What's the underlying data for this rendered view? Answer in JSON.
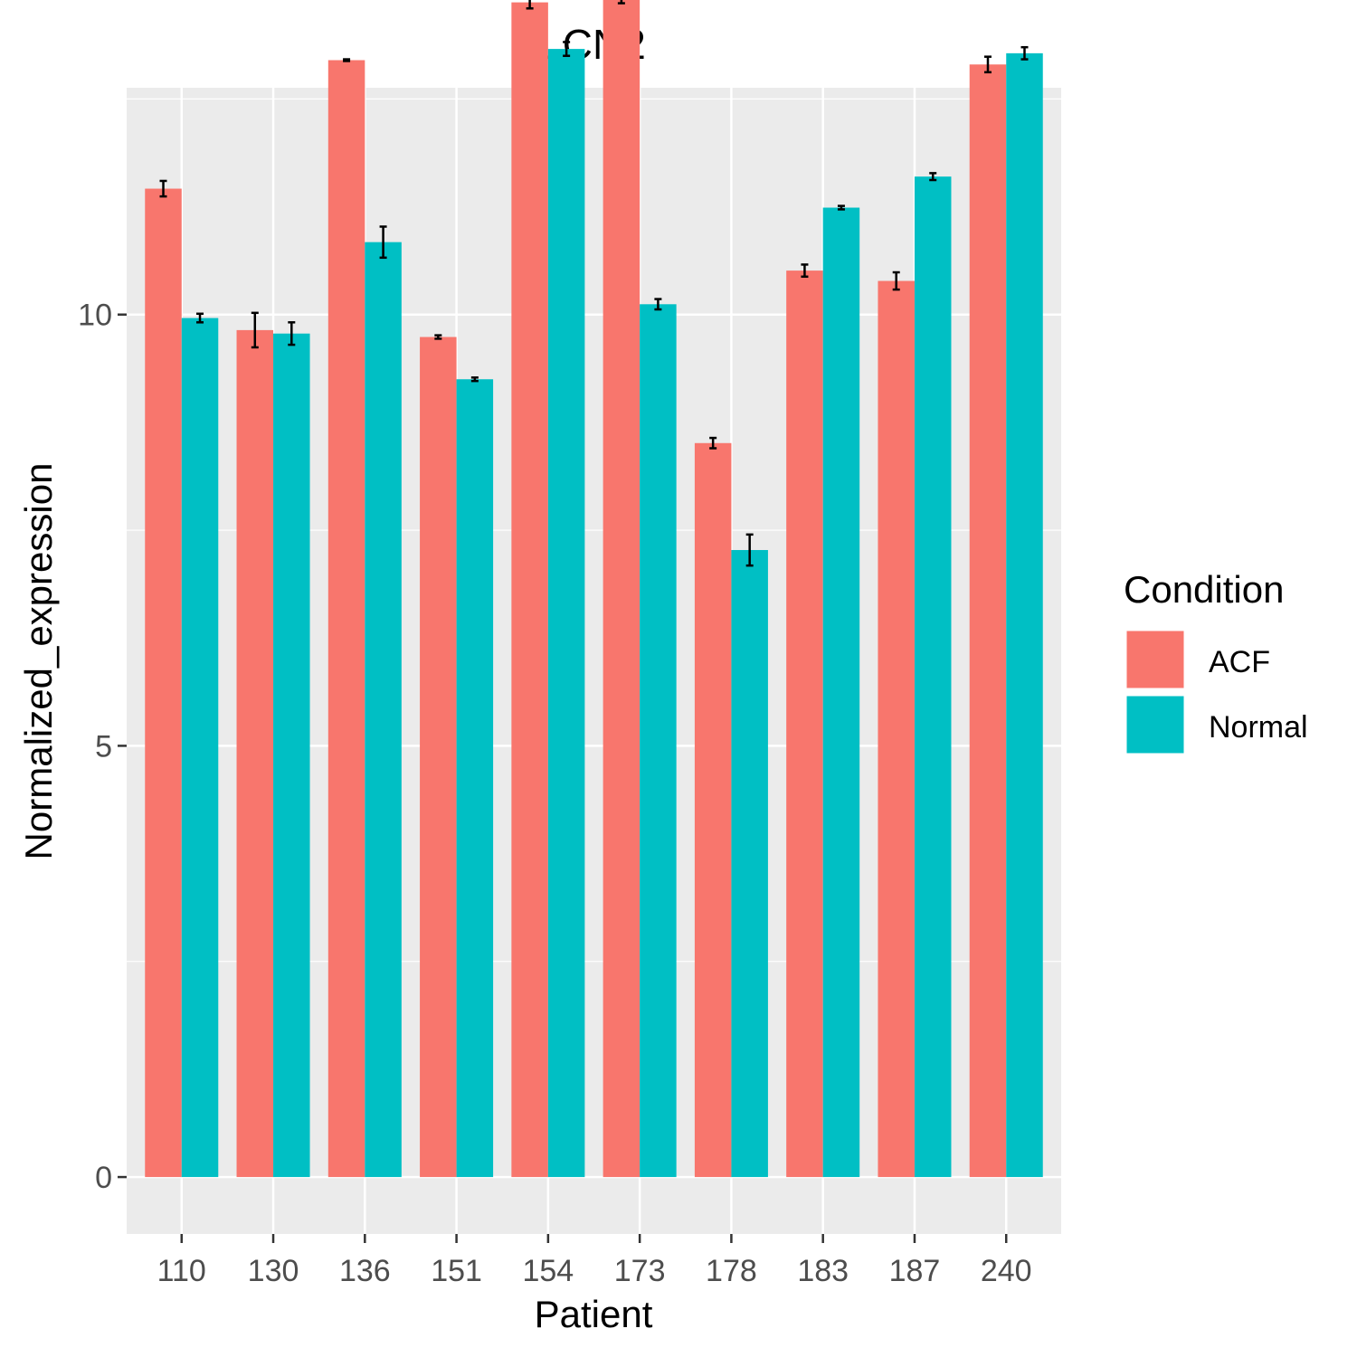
{
  "chart_data": {
    "type": "bar",
    "title": "LCN2",
    "xlabel": "Patient",
    "ylabel": "Normalized_expression",
    "categories": [
      "110",
      "130",
      "136",
      "151",
      "154",
      "173",
      "178",
      "183",
      "187",
      "240"
    ],
    "ylim": [
      -0.66,
      12.63
    ],
    "yticks": [
      0,
      5,
      10
    ],
    "ytick_labels": [
      "0",
      "5",
      "10"
    ],
    "grid": true,
    "legend": {
      "title": "Condition",
      "position": "right"
    },
    "series": [
      {
        "name": "ACF",
        "color": "#F8766D",
        "values": [
          11.46,
          9.82,
          12.95,
          9.74,
          13.62,
          13.71,
          8.51,
          10.51,
          10.39,
          12.9
        ],
        "errors": [
          0.09,
          0.2,
          0.01,
          0.02,
          0.07,
          0.1,
          0.06,
          0.07,
          0.1,
          0.09
        ]
      },
      {
        "name": "Normal",
        "color": "#00BFC4",
        "values": [
          9.96,
          9.78,
          10.84,
          9.25,
          13.08,
          10.12,
          7.27,
          11.24,
          11.6,
          13.03
        ],
        "errors": [
          0.05,
          0.13,
          0.18,
          0.02,
          0.08,
          0.06,
          0.18,
          0.02,
          0.04,
          0.07
        ]
      }
    ]
  }
}
